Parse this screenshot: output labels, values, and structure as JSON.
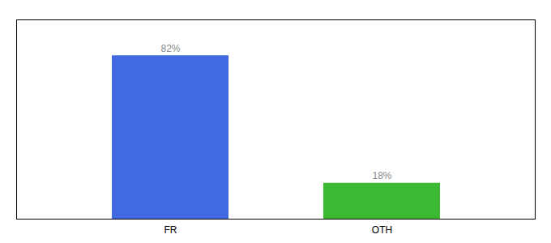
{
  "chart_data": {
    "type": "bar",
    "categories": [
      "FR",
      "OTH"
    ],
    "values": [
      82,
      18
    ],
    "colors": [
      "#4169e1",
      "#3cb832"
    ],
    "value_labels": [
      "82%",
      "18%"
    ],
    "data_labels": true,
    "ylim": [
      0,
      100
    ],
    "tick_labels": "x"
  }
}
